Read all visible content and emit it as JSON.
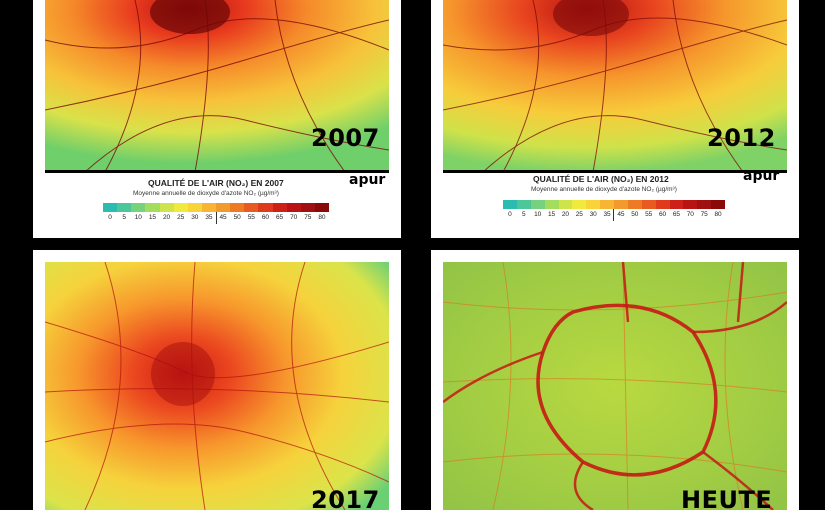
{
  "panels": [
    {
      "year": "2007",
      "title": "QUALITÉ DE L'AIR (NO₂) EN 2007",
      "subtitle": "Moyenne annuelle de dioxyde d'azote NO₂ (µg/m³)",
      "brand": "apur"
    },
    {
      "year": "2012",
      "title": "QUALITÉ DE L'AIR (NO₂) EN 2012",
      "subtitle": "Moyenne annuelle de dioxyde d'azote NO₂ (µg/m³)",
      "brand": "apur"
    },
    {
      "year": "2017"
    },
    {
      "year": "HEUTE"
    }
  ],
  "scale_ticks": [
    "0",
    "5",
    "10",
    "15",
    "20",
    "25",
    "30",
    "35",
    "45",
    "50",
    "55",
    "60",
    "65",
    "70",
    "75",
    "80"
  ],
  "scale_colors": [
    "#2bbbb0",
    "#4cc79a",
    "#76d27e",
    "#a4dc5c",
    "#cfe44a",
    "#f0ea3e",
    "#f8d33a",
    "#f7b533",
    "#f39a2e",
    "#ef7a26",
    "#e95a20",
    "#df3a1c",
    "#cc2018",
    "#b81414",
    "#a01010",
    "#8a0a0a"
  ],
  "colors": {
    "background": "#000000",
    "card": "#ffffff",
    "low": "#2bbbb0",
    "high": "#8a0a0a"
  }
}
